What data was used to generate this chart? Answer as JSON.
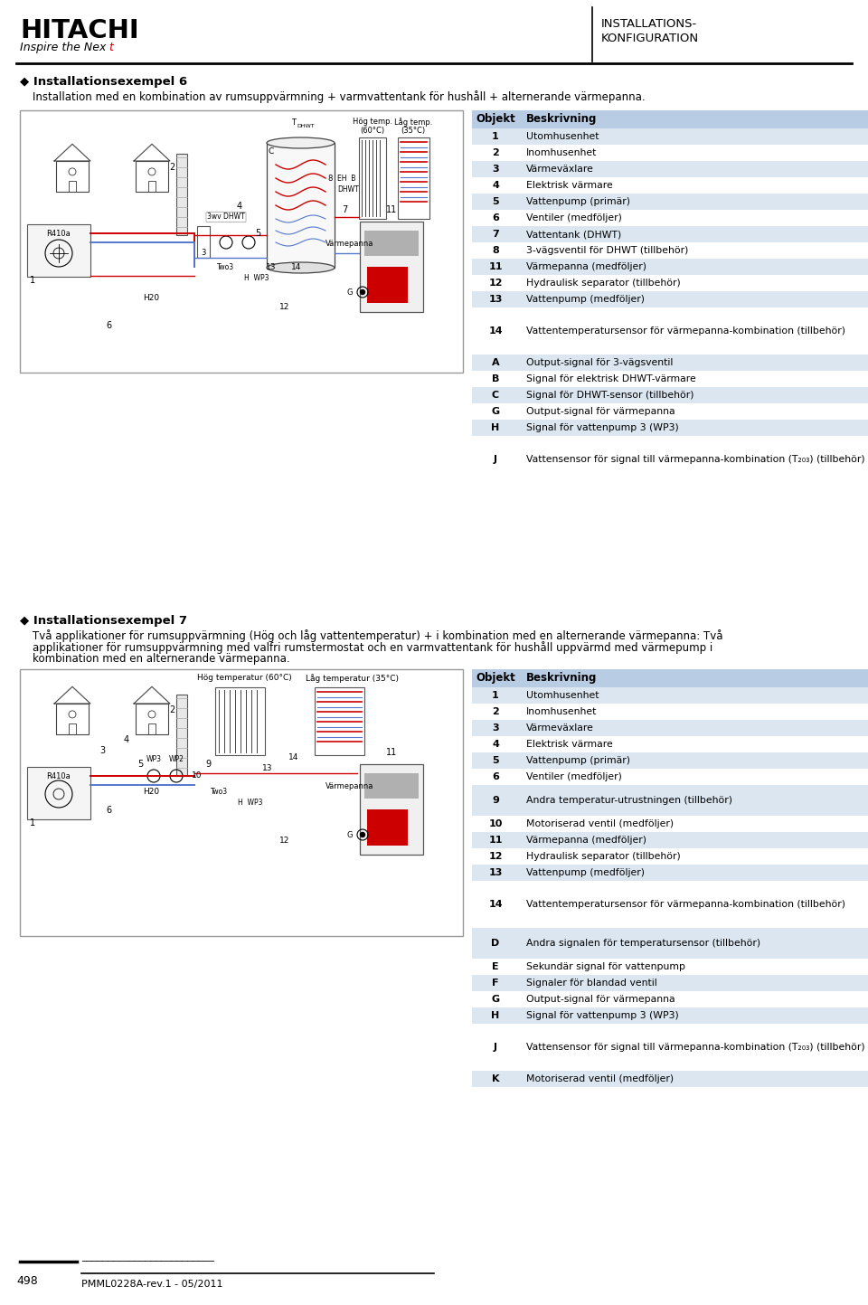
{
  "page_bg": "#ffffff",
  "hitachi_text": "HITACHI",
  "inspire_prefix": "Inspire the Nex",
  "inspire_suffix": "t",
  "header_right_line1": "INSTALLATIONS-",
  "header_right_line2": "KONFIGURATION",
  "footer_page": "498",
  "footer_doc": "PMML0228A-rev.1 - 05/2011",
  "section6_title": "◆ Installationsexempel 6",
  "section6_subtitle": "Installation med en kombination av rumsuppvärmning + varmvattentank för hushåll + alternerande värmepanna.",
  "table6_header": [
    "Objekt",
    "Beskrivning"
  ],
  "table6_header_bg": "#b8cce4",
  "table6_rows": [
    [
      "1",
      "Utomhusenhet"
    ],
    [
      "2",
      "Inomhusenhet"
    ],
    [
      "3",
      "Värmeväxlare"
    ],
    [
      "4",
      "Elektrisk värmare"
    ],
    [
      "5",
      "Vattenpump (primär)"
    ],
    [
      "6",
      "Ventiler (medföljer)"
    ],
    [
      "7",
      "Vattentank (DHWT)"
    ],
    [
      "8",
      "3-vägsventil för DHWT (tillbehör)"
    ],
    [
      "11",
      "Värmepanna (medföljer)"
    ],
    [
      "12",
      "Hydraulisk separator (tillbehör)"
    ],
    [
      "13",
      "Vattenpump (medföljer)"
    ],
    [
      "14",
      "Vattentemperatursensor för värmepanna-kombination (tillbehör)"
    ],
    [
      "A",
      "Output-signal för 3-vägsventil"
    ],
    [
      "B",
      "Signal för elektrisk DHWT-värmare"
    ],
    [
      "C",
      "Signal för DHWT-sensor (tillbehör)"
    ],
    [
      "G",
      "Output-signal för värmepanna"
    ],
    [
      "H",
      "Signal för vattenpump 3 (WP3)"
    ],
    [
      "J",
      "Vattensensor för signal till värmepanna-kombination (T₂₀₃) (tillbehör)"
    ]
  ],
  "table6_row_heights": [
    18,
    18,
    18,
    18,
    18,
    18,
    18,
    18,
    18,
    18,
    18,
    52,
    18,
    18,
    18,
    18,
    18,
    52
  ],
  "table6_alt_bg": "#dce6f1",
  "table6_white_bg": "#ffffff",
  "section7_title": "◆ Installationsexempel 7",
  "section7_subtitle_lines": [
    "Två applikationer för rumsuppvärmning (Hög och låg vattentemperatur) + i kombination med en alternerande värmepanna: Två",
    "applikationer för rumsuppvärmning med valfri rumstermostat och en varmvattentank för hushåll uppvärmd med värmepump i",
    "kombination med en alternerande värmepanna."
  ],
  "table7_header": [
    "Objekt",
    "Beskrivning"
  ],
  "table7_header_bg": "#b8cce4",
  "table7_rows": [
    [
      "1",
      "Utomhusenhet"
    ],
    [
      "2",
      "Inomhusenhet"
    ],
    [
      "3",
      "Värmeväxlare"
    ],
    [
      "4",
      "Elektrisk värmare"
    ],
    [
      "5",
      "Vattenpump (primär)"
    ],
    [
      "6",
      "Ventiler (medföljer)"
    ],
    [
      "9",
      "Andra temperatur-utrustningen (tillbehör)"
    ],
    [
      "10",
      "Motoriserad ventil (medföljer)"
    ],
    [
      "11",
      "Värmepanna (medföljer)"
    ],
    [
      "12",
      "Hydraulisk separator (tillbehör)"
    ],
    [
      "13",
      "Vattenpump (medföljer)"
    ],
    [
      "14",
      "Vattentemperatursensor för värmepanna-kombination (tillbehör)"
    ],
    [
      "D",
      "Andra signalen för temperatursensor (tillbehör)"
    ],
    [
      "E",
      "Sekundär signal för vattenpump"
    ],
    [
      "F",
      "Signaler för blandad ventil"
    ],
    [
      "G",
      "Output-signal för värmepanna"
    ],
    [
      "H",
      "Signal för vattenpump 3 (WP3)"
    ],
    [
      "J",
      "Vattensensor för signal till värmepanna-kombination (T₂₀₃) (tillbehör)"
    ],
    [
      "K",
      "Motoriserad ventil (medföljer)"
    ]
  ],
  "table7_row_heights": [
    18,
    18,
    18,
    18,
    18,
    18,
    34,
    18,
    18,
    18,
    18,
    52,
    34,
    18,
    18,
    18,
    18,
    52,
    18
  ],
  "table7_alt_bg": "#dce6f1",
  "table7_white_bg": "#ffffff",
  "red_color": "#cc0000",
  "blue_color": "#5577cc",
  "dark_red": "#990000"
}
